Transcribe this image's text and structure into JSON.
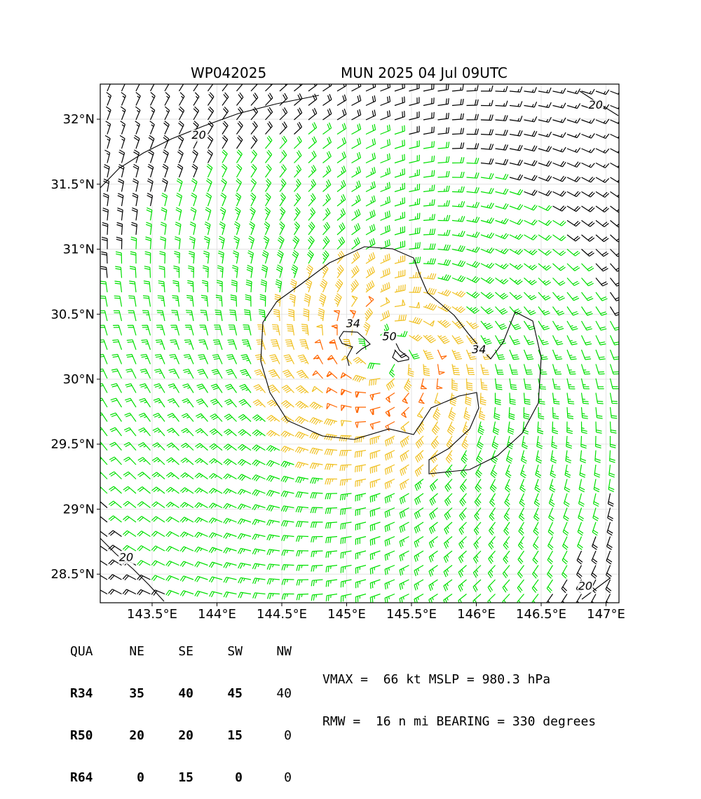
{
  "header": {
    "storm_id": "WP042025",
    "run_label": "MUN 2025 04 Jul 09UTC"
  },
  "chart_data": {
    "type": "wind-barb-map",
    "xlim": [
      143.1,
      147.1
    ],
    "ylim": [
      28.28,
      32.27
    ],
    "x_ticks": [
      143.5,
      144.0,
      144.5,
      145.0,
      145.5,
      146.0,
      146.5,
      147.0
    ],
    "x_tick_labels": [
      "143.5°E",
      "144°E",
      "144.5°E",
      "145°E",
      "145.5°E",
      "146°E",
      "146.5°E",
      "147°E"
    ],
    "y_ticks": [
      28.5,
      29.0,
      29.5,
      30.0,
      30.5,
      31.0,
      31.5,
      32.0
    ],
    "y_tick_labels": [
      "28.5°N",
      "29°N",
      "29.5°N",
      "30°N",
      "30.5°N",
      "31°N",
      "31.5°N",
      "32°N"
    ],
    "grid": true,
    "center": {
      "lon": 145.3,
      "lat": 30.2
    },
    "contour_labels": [
      {
        "text": "34",
        "lon": 145.05,
        "lat": 30.4
      },
      {
        "text": "50",
        "lon": 145.33,
        "lat": 30.3
      },
      {
        "text": "34",
        "lon": 146.02,
        "lat": 30.2
      },
      {
        "text": "20",
        "lon": 143.86,
        "lat": 31.85
      },
      {
        "text": "20",
        "lon": 146.92,
        "lat": 32.08
      },
      {
        "text": "20",
        "lon": 143.3,
        "lat": 28.6
      },
      {
        "text": "20",
        "lon": 146.84,
        "lat": 28.38
      }
    ],
    "barb_colors": {
      "lt20": "#000000",
      "20to34": "#00e000",
      "34to50": "#f0c020",
      "ge50": "#ff6600"
    },
    "contour_color": "#000000"
  },
  "wind_radii": {
    "headers": [
      "QUA",
      "NE",
      "SE",
      "SW",
      "NW"
    ],
    "rows": [
      {
        "label": "R34",
        "values": [
          "35",
          "40",
          "45",
          "40"
        ]
      },
      {
        "label": "R50",
        "values": [
          "20",
          "20",
          "15",
          "0"
        ]
      },
      {
        "label": "R64",
        "values": [
          "0",
          "15",
          "0",
          "0"
        ]
      }
    ]
  },
  "stats": {
    "line1": "VMAX =  66 kt MSLP = 980.3 hPa",
    "line2": "RMW =  16 n mi BEARING = 330 degrees"
  }
}
